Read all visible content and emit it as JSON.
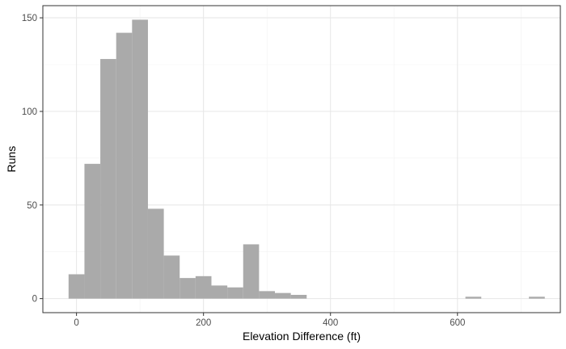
{
  "chart_data": {
    "type": "bar",
    "subtype": "histogram",
    "xlabel": "Elevation Difference (ft)",
    "ylabel": "Runs",
    "x_ticks": [
      0,
      200,
      400,
      600
    ],
    "y_ticks": [
      0,
      50,
      100,
      150
    ],
    "x_tick_labels": [
      "0",
      "200",
      "400",
      "600"
    ],
    "y_tick_labels": [
      "0",
      "50",
      "100",
      "150"
    ],
    "xlim": [
      -53,
      762
    ],
    "ylim": [
      -7.5,
      156.5
    ],
    "bin_width": 25,
    "bins": [
      {
        "x0": -12.5,
        "x1": 12.5,
        "count": 13
      },
      {
        "x0": 12.5,
        "x1": 37.5,
        "count": 72
      },
      {
        "x0": 37.5,
        "x1": 62.5,
        "count": 128
      },
      {
        "x0": 62.5,
        "x1": 87.5,
        "count": 142
      },
      {
        "x0": 87.5,
        "x1": 112.5,
        "count": 149
      },
      {
        "x0": 112.5,
        "x1": 137.5,
        "count": 48
      },
      {
        "x0": 137.5,
        "x1": 162.5,
        "count": 23
      },
      {
        "x0": 162.5,
        "x1": 187.5,
        "count": 11
      },
      {
        "x0": 187.5,
        "x1": 212.5,
        "count": 12
      },
      {
        "x0": 212.5,
        "x1": 237.5,
        "count": 7
      },
      {
        "x0": 237.5,
        "x1": 262.5,
        "count": 6
      },
      {
        "x0": 262.5,
        "x1": 287.5,
        "count": 29
      },
      {
        "x0": 287.5,
        "x1": 312.5,
        "count": 4
      },
      {
        "x0": 312.5,
        "x1": 337.5,
        "count": 3
      },
      {
        "x0": 337.5,
        "x1": 362.5,
        "count": 2
      },
      {
        "x0": 612.5,
        "x1": 637.5,
        "count": 1
      },
      {
        "x0": 712.5,
        "x1": 737.5,
        "count": 1
      }
    ],
    "grid": true,
    "colors": {
      "bar_fill": "#aaaaaa",
      "major_grid": "#e6e6e6",
      "minor_grid": "#f2f2f2",
      "panel_border": "#333333",
      "tick_text": "#4d4d4d"
    }
  }
}
